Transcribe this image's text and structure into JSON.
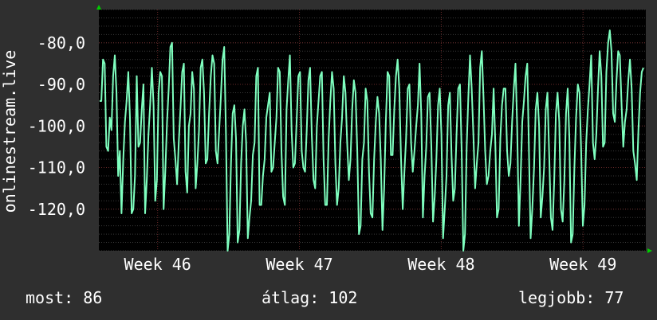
{
  "chart_data": {
    "type": "line",
    "ylabel": "onlinestream.live",
    "y_tick_labels": [
      "-80,0",
      "-90,0",
      "-100,0",
      "-110,0",
      "-120,0"
    ],
    "y_ticks": [
      -80,
      -90,
      -100,
      -110,
      -120
    ],
    "ylim": [
      -130,
      -72
    ],
    "x_tick_labels": [
      "Week 46",
      "Week 47",
      "Week 48",
      "Week 49"
    ],
    "x_ticks": [
      14.5,
      21.5,
      28.5,
      35.5
    ],
    "xlim": [
      11.6,
      38.6
    ],
    "grid": true,
    "colors": {
      "background": "#2f2f2f",
      "plot": "#000000",
      "line": "#7fffbf",
      "grid": "#555555",
      "text": "#ffffff",
      "arrow": "#00cc00"
    },
    "series": [
      {
        "values": [
          -94,
          -94,
          -84,
          -85,
          -105,
          -106,
          -98,
          -101,
          -88,
          -83,
          -92,
          -112,
          -106,
          -121,
          -108,
          -99,
          -94,
          -87,
          -98,
          -121,
          -120,
          -112,
          -88,
          -105,
          -104,
          -96,
          -90,
          -121,
          -113,
          -102,
          -95,
          -86,
          -95,
          -118,
          -113,
          -92,
          -87,
          -88,
          -120,
          -111,
          -99,
          -91,
          -81,
          -80,
          -103,
          -108,
          -114,
          -104,
          -96,
          -87,
          -85,
          -111,
          -116,
          -100,
          -97,
          -87,
          -91,
          -115,
          -109,
          -101,
          -86,
          -84,
          -92,
          -109,
          -108,
          -97,
          -88,
          -83,
          -85,
          -106,
          -109,
          -101,
          -93,
          -84,
          -81,
          -102,
          -130,
          -126,
          -109,
          -97,
          -95,
          -103,
          -128,
          -125,
          -109,
          -100,
          -96,
          -104,
          -127,
          -122,
          -118,
          -107,
          -104,
          -88,
          -86,
          -119,
          -119,
          -112,
          -108,
          -98,
          -95,
          -92,
          -111,
          -110,
          -104,
          -98,
          -86,
          -87,
          -106,
          -117,
          -119,
          -96,
          -89,
          -83,
          -101,
          -110,
          -109,
          -99,
          -88,
          -87,
          -106,
          -110,
          -111,
          -101,
          -89,
          -86,
          -102,
          -113,
          -115,
          -100,
          -94,
          -88,
          -87,
          -108,
          -119,
          -119,
          -103,
          -94,
          -87,
          -91,
          -109,
          -119,
          -115,
          -104,
          -98,
          -88,
          -92,
          -104,
          -113,
          -108,
          -96,
          -89,
          -92,
          -106,
          -126,
          -124,
          -108,
          -104,
          -91,
          -94,
          -111,
          -121,
          -122,
          -108,
          -99,
          -93,
          -97,
          -108,
          -125,
          -115,
          -99,
          -87,
          -88,
          -107,
          -107,
          -96,
          -88,
          -84,
          -91,
          -108,
          -120,
          -111,
          -103,
          -91,
          -90,
          -104,
          -111,
          -106,
          -100,
          -95,
          -85,
          -97,
          -122,
          -112,
          -105,
          -93,
          -92,
          -105,
          -123,
          -117,
          -108,
          -95,
          -91,
          -102,
          -127,
          -120,
          -112,
          -95,
          -92,
          -107,
          -118,
          -115,
          -102,
          -91,
          -90,
          -106,
          -130,
          -126,
          -105,
          -93,
          -83,
          -91,
          -102,
          -115,
          -109,
          -104,
          -86,
          -82,
          -93,
          -106,
          -114,
          -112,
          -106,
          -102,
          -91,
          -104,
          -122,
          -120,
          -103,
          -95,
          -91,
          -91,
          -106,
          -112,
          -109,
          -99,
          -91,
          -85,
          -100,
          -124,
          -113,
          -99,
          -94,
          -88,
          -85,
          -106,
          -127,
          -120,
          -110,
          -96,
          -92,
          -100,
          -122,
          -117,
          -110,
          -96,
          -92,
          -107,
          -122,
          -125,
          -113,
          -97,
          -92,
          -99,
          -120,
          -123,
          -113,
          -97,
          -91,
          -103,
          -128,
          -126,
          -110,
          -98,
          -90,
          -92,
          -106,
          -124,
          -119,
          -104,
          -96,
          -90,
          -83,
          -104,
          -108,
          -102,
          -91,
          -82,
          -88,
          -105,
          -104,
          -87,
          -80,
          -77,
          -82,
          -97,
          -99,
          -89,
          -82,
          -83,
          -95,
          -105,
          -99,
          -96,
          -89,
          -84,
          -91,
          -106,
          -109,
          -113,
          -101,
          -92,
          -87,
          -86
        ]
      }
    ]
  },
  "stats": {
    "now": "most: 86",
    "average": "átlag: 102",
    "best": "legjobb: 77"
  }
}
